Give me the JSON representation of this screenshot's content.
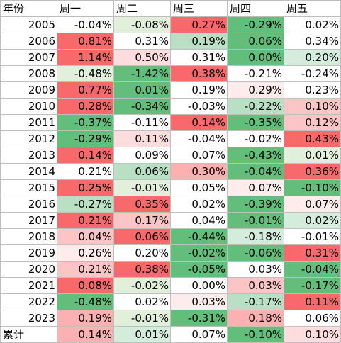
{
  "headers": [
    "年份",
    "周一",
    "周二",
    "周三",
    "周四",
    "周五"
  ],
  "rows": [
    {
      "label": "2005",
      "cells": [
        {
          "v": "-0.04%",
          "c": "#ffffff"
        },
        {
          "v": "-0.08%",
          "c": "#e2efda"
        },
        {
          "v": "0.27%",
          "c": "#f8696b"
        },
        {
          "v": "-0.29%",
          "c": "#63be7b"
        },
        {
          "v": "0.02%",
          "c": "#ffffff"
        }
      ]
    },
    {
      "label": "2006",
      "cells": [
        {
          "v": "0.81%",
          "c": "#f8696b"
        },
        {
          "v": "0.31%",
          "c": "#ffffff"
        },
        {
          "v": "0.19%",
          "c": "#b9dfc4"
        },
        {
          "v": "0.06%",
          "c": "#63be7b"
        },
        {
          "v": "0.34%",
          "c": "#ffffff"
        }
      ]
    },
    {
      "label": "2007",
      "cells": [
        {
          "v": "1.14%",
          "c": "#f8696b"
        },
        {
          "v": "0.50%",
          "c": "#fcdcdd"
        },
        {
          "v": "0.31%",
          "c": "#ffffff"
        },
        {
          "v": "0.00%",
          "c": "#63be7b"
        },
        {
          "v": "0.20%",
          "c": "#d4ecdb"
        }
      ]
    },
    {
      "label": "2008",
      "cells": [
        {
          "v": "-0.48%",
          "c": "#e2efda"
        },
        {
          "v": "-1.42%",
          "c": "#63be7b"
        },
        {
          "v": "0.38%",
          "c": "#f8696b"
        },
        {
          "v": "-0.21%",
          "c": "#ffffff"
        },
        {
          "v": "-0.24%",
          "c": "#ffffff"
        }
      ]
    },
    {
      "label": "2009",
      "cells": [
        {
          "v": "0.77%",
          "c": "#f8696b"
        },
        {
          "v": "0.01%",
          "c": "#63be7b"
        },
        {
          "v": "0.19%",
          "c": "#ffffff"
        },
        {
          "v": "0.29%",
          "c": "#fdeceb"
        },
        {
          "v": "0.23%",
          "c": "#ffffff"
        }
      ]
    },
    {
      "label": "2010",
      "cells": [
        {
          "v": "0.28%",
          "c": "#f8696b"
        },
        {
          "v": "-0.34%",
          "c": "#63be7b"
        },
        {
          "v": "-0.03%",
          "c": "#ffffff"
        },
        {
          "v": "-0.22%",
          "c": "#b9dfc4"
        },
        {
          "v": "0.10%",
          "c": "#fbc5c6"
        }
      ]
    },
    {
      "label": "2011",
      "cells": [
        {
          "v": "-0.37%",
          "c": "#63be7b"
        },
        {
          "v": "-0.11%",
          "c": "#ffffff"
        },
        {
          "v": "0.14%",
          "c": "#f8696b"
        },
        {
          "v": "-0.35%",
          "c": "#63be7b"
        },
        {
          "v": "0.12%",
          "c": "#fbc5c6"
        }
      ]
    },
    {
      "label": "2012",
      "cells": [
        {
          "v": "-0.29%",
          "c": "#63be7b"
        },
        {
          "v": "0.11%",
          "c": "#fcdcdd"
        },
        {
          "v": "-0.04%",
          "c": "#ffffff"
        },
        {
          "v": "-0.02%",
          "c": "#ffffff"
        },
        {
          "v": "0.43%",
          "c": "#f8696b"
        }
      ]
    },
    {
      "label": "2013",
      "cells": [
        {
          "v": "0.14%",
          "c": "#f8696b"
        },
        {
          "v": "0.09%",
          "c": "#ffffff"
        },
        {
          "v": "0.07%",
          "c": "#ffffff"
        },
        {
          "v": "-0.43%",
          "c": "#63be7b"
        },
        {
          "v": "0.01%",
          "c": "#e2efda"
        }
      ]
    },
    {
      "label": "2014",
      "cells": [
        {
          "v": "0.21%",
          "c": "#ffffff"
        },
        {
          "v": "0.06%",
          "c": "#b9dfc4"
        },
        {
          "v": "0.30%",
          "c": "#fbb1b2"
        },
        {
          "v": "-0.04%",
          "c": "#63be7b"
        },
        {
          "v": "0.36%",
          "c": "#f8696b"
        }
      ]
    },
    {
      "label": "2015",
      "cells": [
        {
          "v": "0.25%",
          "c": "#f8696b"
        },
        {
          "v": "-0.01%",
          "c": "#e2efda"
        },
        {
          "v": "0.05%",
          "c": "#ffffff"
        },
        {
          "v": "0.07%",
          "c": "#fdeceb"
        },
        {
          "v": "-0.10%",
          "c": "#63be7b"
        }
      ]
    },
    {
      "label": "2016",
      "cells": [
        {
          "v": "-0.27%",
          "c": "#b9dfc4"
        },
        {
          "v": "0.35%",
          "c": "#f8696b"
        },
        {
          "v": "0.02%",
          "c": "#ffffff"
        },
        {
          "v": "-0.39%",
          "c": "#63be7b"
        },
        {
          "v": "0.07%",
          "c": "#fdeceb"
        }
      ]
    },
    {
      "label": "2017",
      "cells": [
        {
          "v": "0.21%",
          "c": "#f8696b"
        },
        {
          "v": "0.17%",
          "c": "#fbc5c6"
        },
        {
          "v": "0.04%",
          "c": "#ffffff"
        },
        {
          "v": "-0.01%",
          "c": "#63be7b"
        },
        {
          "v": "0.02%",
          "c": "#d4ecdb"
        }
      ]
    },
    {
      "label": "2018",
      "cells": [
        {
          "v": "0.04%",
          "c": "#fbc5c6"
        },
        {
          "v": "0.06%",
          "c": "#f8696b"
        },
        {
          "v": "-0.44%",
          "c": "#63be7b"
        },
        {
          "v": "-0.18%",
          "c": "#d4ecdb"
        },
        {
          "v": "-0.01%",
          "c": "#ffffff"
        }
      ]
    },
    {
      "label": "2019",
      "cells": [
        {
          "v": "0.26%",
          "c": "#fdeceb"
        },
        {
          "v": "0.20%",
          "c": "#ffffff"
        },
        {
          "v": "-0.02%",
          "c": "#63be7b"
        },
        {
          "v": "-0.06%",
          "c": "#63be7b"
        },
        {
          "v": "0.31%",
          "c": "#f8696b"
        }
      ]
    },
    {
      "label": "2020",
      "cells": [
        {
          "v": "0.21%",
          "c": "#fbc5c6"
        },
        {
          "v": "0.38%",
          "c": "#f8696b"
        },
        {
          "v": "-0.05%",
          "c": "#63be7b"
        },
        {
          "v": "0.03%",
          "c": "#ffffff"
        },
        {
          "v": "-0.04%",
          "c": "#63be7b"
        }
      ]
    },
    {
      "label": "2021",
      "cells": [
        {
          "v": "0.08%",
          "c": "#f8696b"
        },
        {
          "v": "-0.02%",
          "c": "#e2efda"
        },
        {
          "v": "0.00%",
          "c": "#ffffff"
        },
        {
          "v": "0.03%",
          "c": "#fbc5c6"
        },
        {
          "v": "-0.17%",
          "c": "#63be7b"
        }
      ]
    },
    {
      "label": "2022",
      "cells": [
        {
          "v": "-0.48%",
          "c": "#63be7b"
        },
        {
          "v": "0.02%",
          "c": "#ffffff"
        },
        {
          "v": "0.03%",
          "c": "#fdeceb"
        },
        {
          "v": "-0.17%",
          "c": "#b9dfc4"
        },
        {
          "v": "0.11%",
          "c": "#f8696b"
        }
      ]
    },
    {
      "label": "2023",
      "cells": [
        {
          "v": "0.19%",
          "c": "#fbb1b2"
        },
        {
          "v": "-0.01%",
          "c": "#e2efda"
        },
        {
          "v": "-0.31%",
          "c": "#63be7b"
        },
        {
          "v": "0.18%",
          "c": "#fbb1b2"
        },
        {
          "v": "0.06%",
          "c": "#ffffff"
        }
      ]
    },
    {
      "label": "累计",
      "cells": [
        {
          "v": "0.14%",
          "c": "#fbb1b2"
        },
        {
          "v": "0.01%",
          "c": "#d4ecdb"
        },
        {
          "v": "0.07%",
          "c": "#ffffff"
        },
        {
          "v": "-0.10%",
          "c": "#63be7b"
        },
        {
          "v": "0.10%",
          "c": "#fcdcdd"
        }
      ]
    }
  ]
}
